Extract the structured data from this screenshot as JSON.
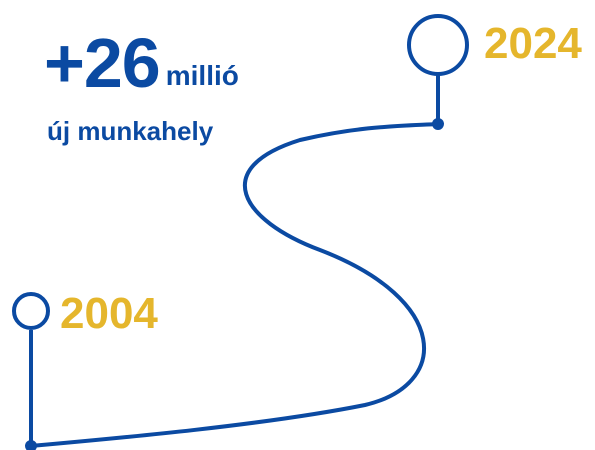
{
  "headline": {
    "value": "+26",
    "unit": "millió",
    "subtitle": "új munkahely"
  },
  "timeline": {
    "start_year": "2004",
    "end_year": "2024"
  },
  "colors": {
    "path": "#0b4aa2",
    "headline": "#0b4aa2",
    "years": "#e5b62c",
    "background": "#ffffff"
  }
}
